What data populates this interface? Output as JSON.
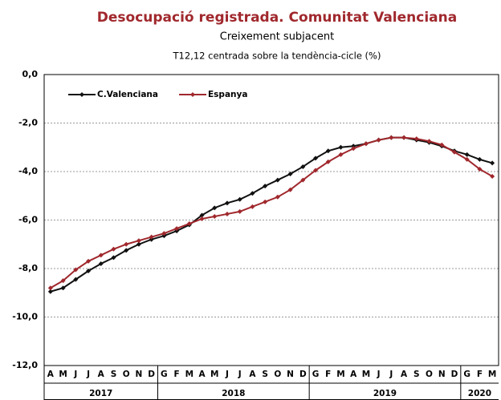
{
  "chart_data": {
    "type": "line",
    "title": "Desocupació registrada. Comunitat Valenciana",
    "subtitle": "Creixement subjacent",
    "note": "T12,12 centrada sobre la tendència-cicle (%)",
    "categories": [
      "A",
      "M",
      "J",
      "J",
      "A",
      "S",
      "O",
      "N",
      "D",
      "G",
      "F",
      "M",
      "A",
      "M",
      "J",
      "J",
      "A",
      "S",
      "O",
      "N",
      "D",
      "G",
      "F",
      "M",
      "A",
      "M",
      "J",
      "J",
      "A",
      "S",
      "O",
      "N",
      "D",
      "G",
      "F",
      "M"
    ],
    "years": [
      "2017",
      "2018",
      "2019",
      "2020"
    ],
    "series": [
      {
        "name": "C.Valenciana",
        "color": "#111111",
        "values": [
          -8.95,
          -8.8,
          -8.45,
          -8.1,
          -7.8,
          -7.55,
          -7.25,
          -7.0,
          -6.8,
          -6.65,
          -6.45,
          -6.2,
          -5.8,
          -5.5,
          -5.3,
          -5.15,
          -4.9,
          -4.6,
          -4.35,
          -4.1,
          -3.8,
          -3.45,
          -3.15,
          -3.0,
          -2.95,
          -2.85,
          -2.7,
          -2.6,
          -2.6,
          -2.7,
          -2.8,
          -2.95,
          -3.15,
          -3.3,
          -3.5,
          -3.65
        ]
      },
      {
        "name": "Espanya",
        "color": "#a0282d",
        "values": [
          -8.8,
          -8.5,
          -8.05,
          -7.7,
          -7.45,
          -7.2,
          -7.0,
          -6.85,
          -6.7,
          -6.55,
          -6.35,
          -6.15,
          -5.95,
          -5.85,
          -5.75,
          -5.65,
          -5.45,
          -5.25,
          -5.05,
          -4.75,
          -4.35,
          -3.95,
          -3.6,
          -3.3,
          -3.05,
          -2.85,
          -2.7,
          -2.6,
          -2.6,
          -2.65,
          -2.75,
          -2.9,
          -3.2,
          -3.5,
          -3.9,
          -4.2
        ]
      }
    ],
    "ylim": [
      -12,
      0
    ],
    "yticks": [
      {
        "value": 0,
        "label": "0,0"
      },
      {
        "value": -2,
        "label": "-2,0"
      },
      {
        "value": -4,
        "label": "-4,0"
      },
      {
        "value": -6,
        "label": "-6,0"
      },
      {
        "value": -8,
        "label": "-8,0"
      },
      {
        "value": -10,
        "label": "-10,0"
      },
      {
        "value": -12,
        "label": "-12,0"
      }
    ],
    "grid": true,
    "legend": "top-left"
  }
}
